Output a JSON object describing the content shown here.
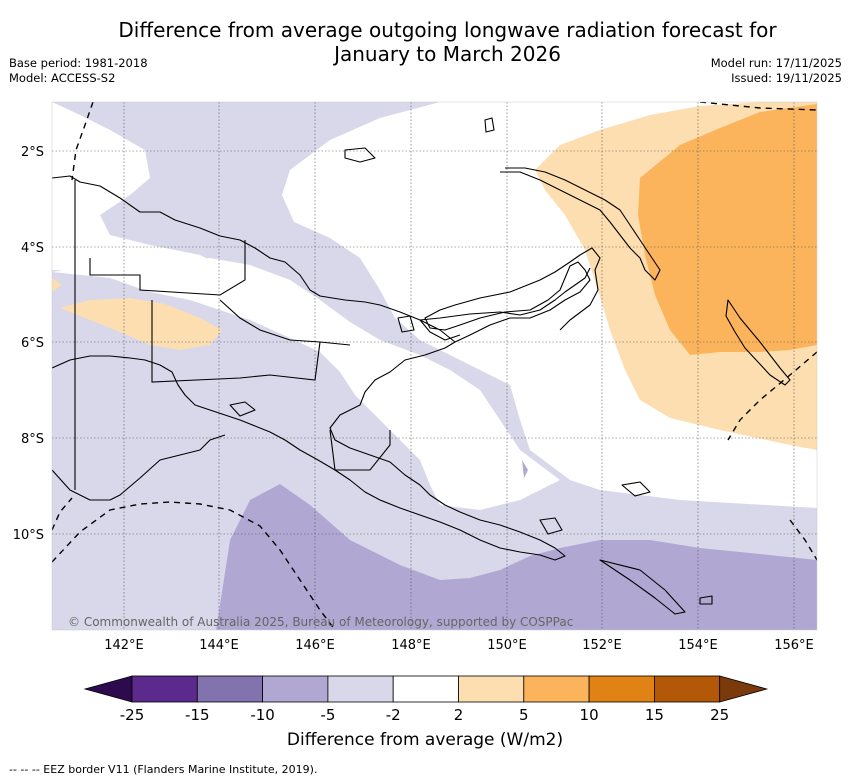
{
  "title": {
    "line1": "Difference from average outgoing longwave radiation forecast for",
    "line2": "January to March 2026"
  },
  "meta_left": {
    "base_period": "Base period: 1981-2018",
    "model": "Model: ACCESS-S2"
  },
  "meta_right": {
    "model_run": "Model run: 17/11/2025",
    "issued": "Issued: 19/11/2025"
  },
  "map": {
    "longitude_ticks": [
      "142°E",
      "144°E",
      "146°E",
      "148°E",
      "150°E",
      "152°E",
      "154°E",
      "156°E"
    ],
    "latitude_ticks": [
      "2°S",
      "4°S",
      "6°S",
      "8°S",
      "10°S"
    ],
    "copyright": "© Commonwealth of Australia 2025, Bureau of Meteorology, supported by COSPPac"
  },
  "colorbar": {
    "label": "Difference from average (W/m2)",
    "ticks": [
      "-25",
      "-15",
      "-10",
      "-5",
      "-2",
      "2",
      "5",
      "10",
      "15",
      "25"
    ],
    "extend_low_color": "#2d0a4e",
    "extend_high_color": "#7a3a0c",
    "colors": [
      "#5b2a8c",
      "#8272ad",
      "#b0a8d2",
      "#d8d8ea",
      "#ffffff",
      "#fddeb0",
      "#fbb45c",
      "#e08214",
      "#b35806"
    ]
  },
  "footnote": "--  --  -- EEZ border V11 (Flanders Marine Institute, 2019).",
  "colors": {
    "light_purple": "#d8d8ea",
    "mid_purple": "#b0a8d2",
    "light_orange": "#fddeb0",
    "mid_orange": "#fbb45c"
  }
}
